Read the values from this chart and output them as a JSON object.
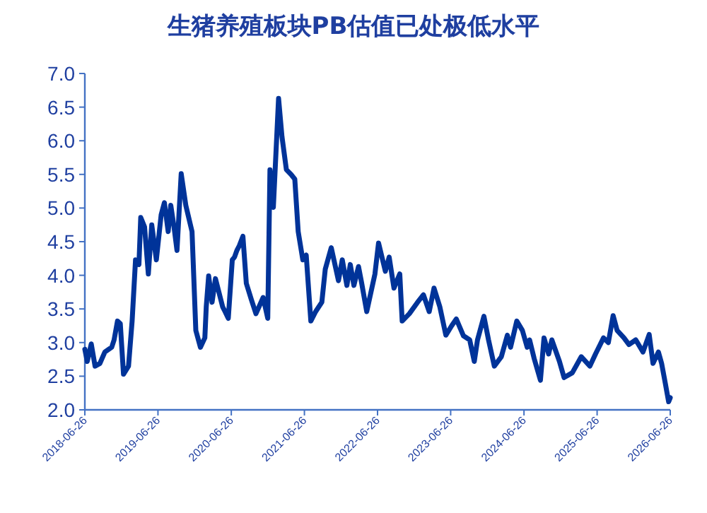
{
  "chart_data": {
    "type": "line",
    "title": "生猪养殖板块PB估值已处极低水平",
    "color": "#003399",
    "xlim": [
      "2018-06-26",
      "2026-06-26"
    ],
    "xticks": [
      "2018-06-26",
      "2019-06-26",
      "2020-06-26",
      "2021-06-26",
      "2022-06-26",
      "2023-06-26",
      "2024-06-26",
      "2025-06-26",
      "2026-06-26"
    ],
    "ylim": [
      2.0,
      7.0
    ],
    "yticks": [
      {
        "value": 2.0,
        "label": "2.0"
      },
      {
        "value": 2.5,
        "label": "2.5"
      },
      {
        "value": 3.0,
        "label": "3.0"
      },
      {
        "value": 3.5,
        "label": "3.5"
      },
      {
        "value": 4.0,
        "label": "4.0"
      },
      {
        "value": 4.5,
        "label": "4.5"
      },
      {
        "value": 5.0,
        "label": "5.0"
      },
      {
        "value": 5.5,
        "label": "5.5"
      },
      {
        "value": 6.0,
        "label": "6.0"
      },
      {
        "value": 6.5,
        "label": "6.5"
      },
      {
        "value": 7.0,
        "label": "7.0"
      }
    ],
    "x": [
      "2018-06-26",
      "2018-07-08",
      "2018-07-28",
      "2018-08-16",
      "2018-09-09",
      "2018-10-04",
      "2018-11-07",
      "2018-11-19",
      "2018-12-06",
      "2018-12-20",
      "2019-01-05",
      "2019-01-30",
      "2019-02-17",
      "2019-03-06",
      "2019-03-23",
      "2019-04-01",
      "2019-04-20",
      "2019-05-09",
      "2019-05-26",
      "2019-06-18",
      "2019-07-12",
      "2019-07-28",
      "2019-08-16",
      "2019-08-29",
      "2019-09-14",
      "2019-09-29",
      "2019-10-20",
      "2019-11-12",
      "2019-12-13",
      "2020-01-01",
      "2020-01-24",
      "2020-02-15",
      "2020-02-22",
      "2020-03-05",
      "2020-03-22",
      "2020-04-08",
      "2020-05-14",
      "2020-05-26",
      "2020-06-11",
      "2020-07-01",
      "2020-07-12",
      "2020-07-24",
      "2020-08-05",
      "2020-08-23",
      "2020-09-09",
      "2020-10-04",
      "2020-10-27",
      "2020-12-02",
      "2020-12-25",
      "2021-01-05",
      "2021-01-22",
      "2021-02-17",
      "2021-03-06",
      "2021-03-28",
      "2021-04-20",
      "2021-05-09",
      "2021-05-26",
      "2021-06-18",
      "2021-07-05",
      "2021-07-28",
      "2021-08-21",
      "2021-09-21",
      "2021-10-08",
      "2021-11-07",
      "2021-12-13",
      "2022-01-01",
      "2022-01-24",
      "2022-02-10",
      "2022-02-28",
      "2022-03-23",
      "2022-04-08",
      "2022-05-03",
      "2022-06-13",
      "2022-07-01",
      "2022-08-04",
      "2022-08-23",
      "2022-09-16",
      "2022-10-15",
      "2022-10-27",
      "2022-12-02",
      "2023-01-12",
      "2023-02-10",
      "2023-03-11",
      "2023-04-04",
      "2023-05-03",
      "2023-06-02",
      "2023-07-01",
      "2023-07-24",
      "2023-08-29",
      "2023-09-29",
      "2023-10-22",
      "2023-11-07",
      "2023-12-09",
      "2024-01-01",
      "2024-01-30",
      "2024-03-05",
      "2024-04-04",
      "2024-04-20",
      "2024-05-21",
      "2024-06-18",
      "2024-07-12",
      "2024-07-24",
      "2024-08-16",
      "2024-09-16",
      "2024-10-04",
      "2024-10-27",
      "2024-11-12",
      "2024-12-20",
      "2025-01-12",
      "2025-02-22",
      "2025-04-08",
      "2025-05-21",
      "2025-06-18",
      "2025-07-28",
      "2025-08-21",
      "2025-09-14",
      "2025-10-04",
      "2025-11-07",
      "2025-12-02",
      "2026-01-05",
      "2026-02-10",
      "2026-03-13",
      "2026-04-01",
      "2026-04-28",
      "2026-05-14",
      "2026-06-01",
      "2026-06-18",
      "2026-06-26"
    ],
    "values": [
      2.9,
      2.72,
      2.98,
      2.65,
      2.69,
      2.86,
      2.93,
      3.04,
      3.32,
      3.28,
      2.53,
      2.65,
      3.32,
      4.23,
      4.16,
      4.86,
      4.72,
      4.02,
      4.75,
      4.23,
      4.9,
      5.08,
      4.65,
      5.04,
      4.72,
      4.37,
      5.51,
      5.04,
      4.65,
      3.18,
      2.93,
      3.07,
      3.53,
      3.99,
      3.6,
      3.95,
      3.53,
      3.46,
      3.36,
      4.23,
      4.27,
      4.37,
      4.44,
      4.58,
      3.88,
      3.64,
      3.43,
      3.67,
      3.36,
      5.57,
      5.01,
      6.63,
      6.06,
      5.57,
      5.5,
      5.43,
      4.65,
      4.23,
      4.3,
      3.32,
      3.46,
      3.6,
      4.09,
      4.41,
      3.92,
      4.23,
      3.85,
      4.16,
      3.85,
      4.13,
      3.88,
      3.46,
      4.02,
      4.48,
      4.06,
      4.27,
      3.81,
      4.02,
      3.32,
      3.43,
      3.6,
      3.71,
      3.46,
      3.81,
      3.53,
      3.11,
      3.25,
      3.35,
      3.1,
      3.04,
      2.72,
      3.04,
      3.39,
      3.04,
      2.65,
      2.79,
      3.11,
      2.93,
      3.32,
      3.18,
      2.93,
      3.04,
      2.76,
      2.44,
      3.07,
      2.83,
      3.04,
      2.72,
      2.48,
      2.55,
      2.79,
      2.65,
      2.83,
      3.07,
      3.0,
      3.4,
      3.18,
      3.07,
      2.97,
      3.04,
      2.86,
      3.12,
      2.69,
      2.86,
      2.69,
      2.4,
      2.12,
      2.18
    ]
  }
}
